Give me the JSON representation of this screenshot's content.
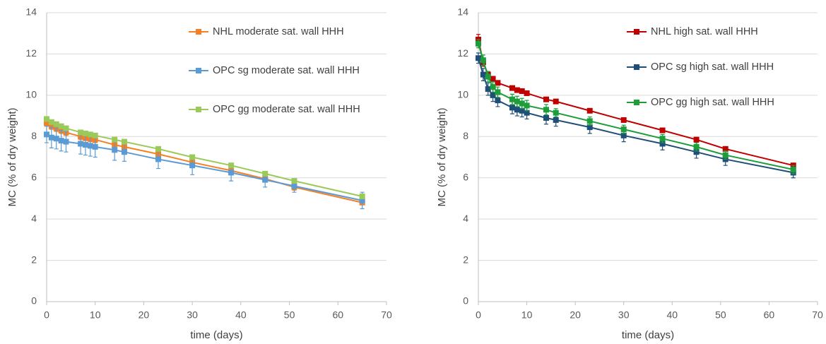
{
  "chart_data": [
    {
      "type": "line",
      "xlabel": "time (days)",
      "ylabel": "MC (% of dry weight)",
      "x": [
        0,
        1,
        2,
        3,
        4,
        7,
        8,
        9,
        10,
        14,
        16,
        23,
        30,
        38,
        45,
        51,
        65
      ],
      "xlim": [
        0,
        70
      ],
      "xticks": [
        0,
        10,
        20,
        30,
        40,
        50,
        60,
        70
      ],
      "ylim": [
        0,
        14
      ],
      "yticks": [
        0,
        2,
        4,
        6,
        8,
        10,
        12,
        14
      ],
      "grid": true,
      "legend": "upper right",
      "series": [
        {
          "name": "NHL moderate sat. wall HHH",
          "color": "#f58025",
          "values": [
            8.65,
            8.5,
            8.4,
            8.3,
            8.2,
            8.0,
            7.95,
            7.9,
            7.85,
            7.6,
            7.5,
            7.15,
            6.75,
            6.35,
            5.95,
            5.55,
            4.8
          ],
          "errors": [
            0.15,
            0.15,
            0.15,
            0.15,
            0.15,
            0.15,
            0.15,
            0.15,
            0.15,
            0.15,
            0.15,
            0.15,
            0.15,
            0.15,
            0.15,
            0.15,
            0.1
          ]
        },
        {
          "name": "OPC sg moderate sat. wall HHH",
          "color": "#5b9bd5",
          "values": [
            8.1,
            7.95,
            7.9,
            7.8,
            7.75,
            7.65,
            7.6,
            7.55,
            7.5,
            7.35,
            7.25,
            6.9,
            6.6,
            6.25,
            5.9,
            5.6,
            4.9
          ],
          "errors": [
            0.4,
            0.5,
            0.5,
            0.5,
            0.5,
            0.5,
            0.5,
            0.5,
            0.5,
            0.5,
            0.45,
            0.45,
            0.45,
            0.4,
            0.35,
            0.3,
            0.4
          ]
        },
        {
          "name": "OPC gg moderate sat. wall HHH",
          "color": "#9bc95a",
          "values": [
            8.85,
            8.7,
            8.6,
            8.5,
            8.4,
            8.2,
            8.15,
            8.1,
            8.05,
            7.85,
            7.75,
            7.4,
            7.0,
            6.6,
            6.2,
            5.85,
            5.1
          ],
          "errors": [
            0.1,
            0.1,
            0.1,
            0.1,
            0.1,
            0.1,
            0.1,
            0.1,
            0.1,
            0.1,
            0.1,
            0.1,
            0.1,
            0.1,
            0.1,
            0.1,
            0.1
          ]
        }
      ]
    },
    {
      "type": "line",
      "xlabel": "time (days)",
      "ylabel": "MC (% of dry weight)",
      "x": [
        0,
        1,
        2,
        3,
        4,
        7,
        8,
        9,
        10,
        14,
        16,
        23,
        30,
        38,
        45,
        51,
        65
      ],
      "xlim": [
        0,
        70
      ],
      "xticks": [
        0,
        10,
        20,
        30,
        40,
        50,
        60,
        70
      ],
      "ylim": [
        0,
        14
      ],
      "yticks": [
        0,
        2,
        4,
        6,
        8,
        10,
        12,
        14
      ],
      "grid": true,
      "legend": "upper right",
      "series": [
        {
          "name": "NHL high sat. wall HHH",
          "color": "#c00000",
          "values": [
            12.7,
            11.6,
            11.0,
            10.8,
            10.6,
            10.35,
            10.25,
            10.2,
            10.1,
            9.8,
            9.7,
            9.25,
            8.8,
            8.3,
            7.85,
            7.4,
            6.6
          ],
          "errors": [
            0.25,
            0.2,
            0.15,
            0.1,
            0.1,
            0.1,
            0.1,
            0.1,
            0.1,
            0.1,
            0.1,
            0.1,
            0.1,
            0.1,
            0.1,
            0.1,
            0.1
          ]
        },
        {
          "name": "OPC sg high sat. wall HHH",
          "color": "#1f4e79",
          "values": [
            11.8,
            11.0,
            10.3,
            10.0,
            9.75,
            9.4,
            9.3,
            9.25,
            9.15,
            8.9,
            8.8,
            8.45,
            8.05,
            7.65,
            7.25,
            6.9,
            6.25
          ],
          "errors": [
            0.25,
            0.3,
            0.3,
            0.3,
            0.3,
            0.3,
            0.3,
            0.3,
            0.3,
            0.3,
            0.3,
            0.3,
            0.3,
            0.3,
            0.3,
            0.3,
            0.25
          ]
        },
        {
          "name": "OPC gg high sat. wall HHH",
          "color": "#1e9e3a",
          "values": [
            12.5,
            11.7,
            10.9,
            10.4,
            10.15,
            9.8,
            9.7,
            9.6,
            9.5,
            9.3,
            9.15,
            8.75,
            8.35,
            7.9,
            7.5,
            7.1,
            6.4
          ],
          "errors": [
            0.2,
            0.25,
            0.25,
            0.25,
            0.25,
            0.25,
            0.25,
            0.25,
            0.25,
            0.25,
            0.2,
            0.2,
            0.2,
            0.2,
            0.2,
            0.2,
            0.2
          ]
        }
      ]
    }
  ]
}
